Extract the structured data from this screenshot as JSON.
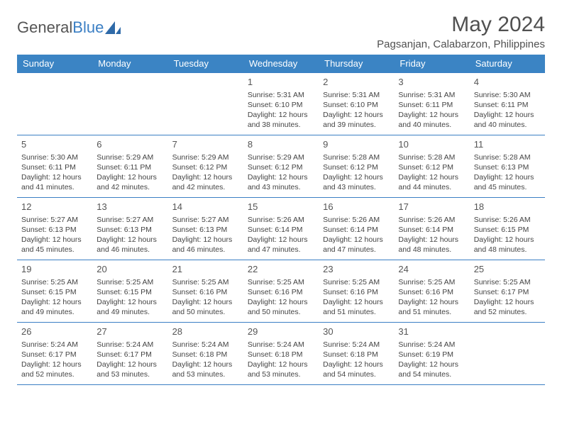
{
  "logo": {
    "text1": "General",
    "text2": "Blue"
  },
  "title": "May 2024",
  "location": "Pagsanjan, Calabarzon, Philippines",
  "colors": {
    "header_bg": "#3b84c4",
    "header_text": "#ffffff",
    "border": "#3b7fc4",
    "text": "#444444",
    "title_text": "#505050",
    "background": "#ffffff"
  },
  "typography": {
    "title_fontsize": 30,
    "location_fontsize": 15,
    "dayheader_fontsize": 13,
    "daynum_fontsize": 13,
    "cell_fontsize": 10.5
  },
  "day_headers": [
    "Sunday",
    "Monday",
    "Tuesday",
    "Wednesday",
    "Thursday",
    "Friday",
    "Saturday"
  ],
  "weeks": [
    [
      null,
      null,
      null,
      {
        "n": "1",
        "sr": "5:31 AM",
        "ss": "6:10 PM",
        "dl": "12 hours and 38 minutes."
      },
      {
        "n": "2",
        "sr": "5:31 AM",
        "ss": "6:10 PM",
        "dl": "12 hours and 39 minutes."
      },
      {
        "n": "3",
        "sr": "5:31 AM",
        "ss": "6:11 PM",
        "dl": "12 hours and 40 minutes."
      },
      {
        "n": "4",
        "sr": "5:30 AM",
        "ss": "6:11 PM",
        "dl": "12 hours and 40 minutes."
      }
    ],
    [
      {
        "n": "5",
        "sr": "5:30 AM",
        "ss": "6:11 PM",
        "dl": "12 hours and 41 minutes."
      },
      {
        "n": "6",
        "sr": "5:29 AM",
        "ss": "6:11 PM",
        "dl": "12 hours and 42 minutes."
      },
      {
        "n": "7",
        "sr": "5:29 AM",
        "ss": "6:12 PM",
        "dl": "12 hours and 42 minutes."
      },
      {
        "n": "8",
        "sr": "5:29 AM",
        "ss": "6:12 PM",
        "dl": "12 hours and 43 minutes."
      },
      {
        "n": "9",
        "sr": "5:28 AM",
        "ss": "6:12 PM",
        "dl": "12 hours and 43 minutes."
      },
      {
        "n": "10",
        "sr": "5:28 AM",
        "ss": "6:12 PM",
        "dl": "12 hours and 44 minutes."
      },
      {
        "n": "11",
        "sr": "5:28 AM",
        "ss": "6:13 PM",
        "dl": "12 hours and 45 minutes."
      }
    ],
    [
      {
        "n": "12",
        "sr": "5:27 AM",
        "ss": "6:13 PM",
        "dl": "12 hours and 45 minutes."
      },
      {
        "n": "13",
        "sr": "5:27 AM",
        "ss": "6:13 PM",
        "dl": "12 hours and 46 minutes."
      },
      {
        "n": "14",
        "sr": "5:27 AM",
        "ss": "6:13 PM",
        "dl": "12 hours and 46 minutes."
      },
      {
        "n": "15",
        "sr": "5:26 AM",
        "ss": "6:14 PM",
        "dl": "12 hours and 47 minutes."
      },
      {
        "n": "16",
        "sr": "5:26 AM",
        "ss": "6:14 PM",
        "dl": "12 hours and 47 minutes."
      },
      {
        "n": "17",
        "sr": "5:26 AM",
        "ss": "6:14 PM",
        "dl": "12 hours and 48 minutes."
      },
      {
        "n": "18",
        "sr": "5:26 AM",
        "ss": "6:15 PM",
        "dl": "12 hours and 48 minutes."
      }
    ],
    [
      {
        "n": "19",
        "sr": "5:25 AM",
        "ss": "6:15 PM",
        "dl": "12 hours and 49 minutes."
      },
      {
        "n": "20",
        "sr": "5:25 AM",
        "ss": "6:15 PM",
        "dl": "12 hours and 49 minutes."
      },
      {
        "n": "21",
        "sr": "5:25 AM",
        "ss": "6:16 PM",
        "dl": "12 hours and 50 minutes."
      },
      {
        "n": "22",
        "sr": "5:25 AM",
        "ss": "6:16 PM",
        "dl": "12 hours and 50 minutes."
      },
      {
        "n": "23",
        "sr": "5:25 AM",
        "ss": "6:16 PM",
        "dl": "12 hours and 51 minutes."
      },
      {
        "n": "24",
        "sr": "5:25 AM",
        "ss": "6:16 PM",
        "dl": "12 hours and 51 minutes."
      },
      {
        "n": "25",
        "sr": "5:25 AM",
        "ss": "6:17 PM",
        "dl": "12 hours and 52 minutes."
      }
    ],
    [
      {
        "n": "26",
        "sr": "5:24 AM",
        "ss": "6:17 PM",
        "dl": "12 hours and 52 minutes."
      },
      {
        "n": "27",
        "sr": "5:24 AM",
        "ss": "6:17 PM",
        "dl": "12 hours and 53 minutes."
      },
      {
        "n": "28",
        "sr": "5:24 AM",
        "ss": "6:18 PM",
        "dl": "12 hours and 53 minutes."
      },
      {
        "n": "29",
        "sr": "5:24 AM",
        "ss": "6:18 PM",
        "dl": "12 hours and 53 minutes."
      },
      {
        "n": "30",
        "sr": "5:24 AM",
        "ss": "6:18 PM",
        "dl": "12 hours and 54 minutes."
      },
      {
        "n": "31",
        "sr": "5:24 AM",
        "ss": "6:19 PM",
        "dl": "12 hours and 54 minutes."
      },
      null
    ]
  ],
  "labels": {
    "sunrise": "Sunrise:",
    "sunset": "Sunset:",
    "daylight": "Daylight:"
  }
}
